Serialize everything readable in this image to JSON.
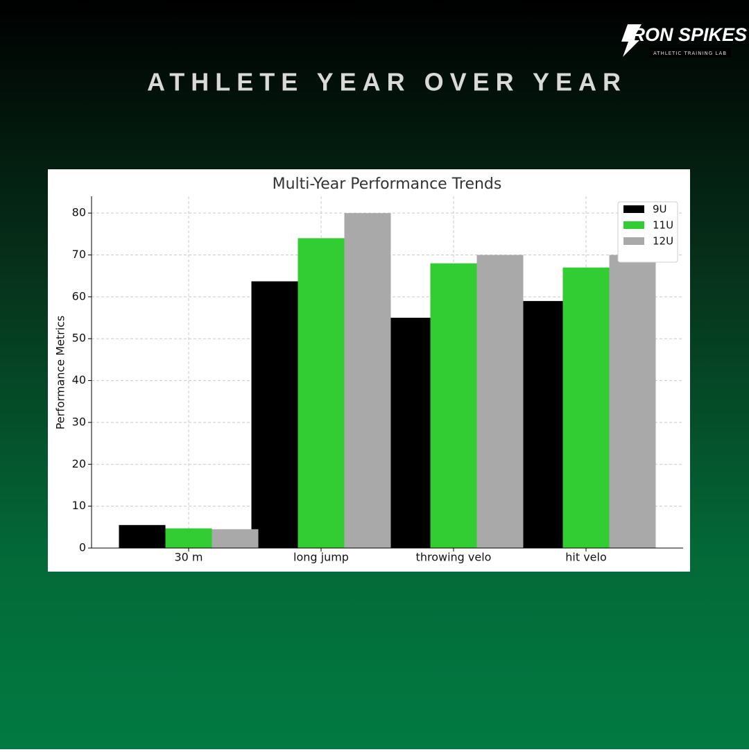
{
  "header": {
    "title": "ATHLETE YEAR OVER YEAR",
    "logo": "IRON SPIKES",
    "logo_tagline": "ATHLETIC TRAINING LAB"
  },
  "chart_data": {
    "type": "bar",
    "title": "Multi-Year Performance Trends",
    "ylabel": "Performance Metrics",
    "categories": [
      "30 m",
      "long jump",
      "throwing velo",
      "hit velo"
    ],
    "series": [
      {
        "name": "9U",
        "color": "#000000",
        "values": [
          5.5,
          63.7,
          55,
          59
        ]
      },
      {
        "name": "11U",
        "color": "#32cd32",
        "values": [
          4.7,
          74,
          68,
          67
        ]
      },
      {
        "name": "12U",
        "color": "#a9a9a9",
        "values": [
          4.5,
          80,
          70,
          70
        ]
      }
    ],
    "ylim": [
      0,
      84
    ],
    "yticks": [
      0,
      10,
      20,
      30,
      40,
      50,
      60,
      70,
      80
    ],
    "grid": true,
    "legend": "upper right"
  }
}
